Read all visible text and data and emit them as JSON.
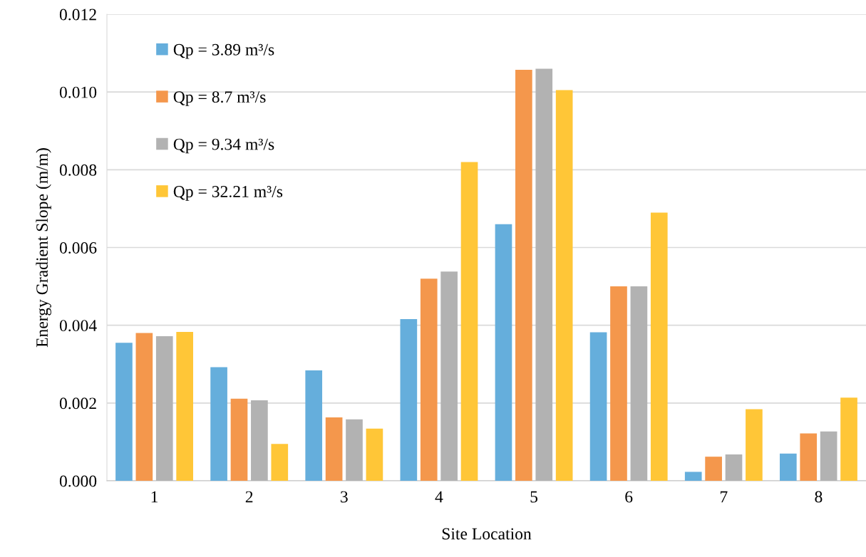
{
  "chart_data": {
    "type": "bar",
    "xlabel": "Site Location",
    "ylabel": "Energy Gradient Slope (m/m)",
    "categories": [
      "1",
      "2",
      "3",
      "4",
      "5",
      "6",
      "7",
      "8"
    ],
    "series": [
      {
        "name": "Qp = 3.89 m³/s",
        "color": "#65aedc",
        "values": [
          0.00355,
          0.00292,
          0.00284,
          0.00416,
          0.0066,
          0.00382,
          0.00023,
          0.0007
        ]
      },
      {
        "name": "Qp = 8.7 m³/s",
        "color": "#f4974c",
        "values": [
          0.0038,
          0.00211,
          0.00163,
          0.0052,
          0.01057,
          0.005,
          0.00062,
          0.00122
        ]
      },
      {
        "name": "Qp = 9.34 m³/s",
        "color": "#b2b2b2",
        "values": [
          0.00372,
          0.00207,
          0.00158,
          0.00538,
          0.0106,
          0.005,
          0.00068,
          0.00127
        ]
      },
      {
        "name": "Qp = 32.21 m³/s",
        "color": "#ffc637",
        "values": [
          0.00383,
          0.00095,
          0.00134,
          0.0082,
          0.01005,
          0.0069,
          0.00184,
          0.00214
        ]
      }
    ],
    "ylim": [
      0,
      0.012
    ],
    "yticks": [
      {
        "value": 0,
        "label": "0.000"
      },
      {
        "value": 0.002,
        "label": "0.002"
      },
      {
        "value": 0.004,
        "label": "0.004"
      },
      {
        "value": 0.006,
        "label": "0.006"
      },
      {
        "value": 0.008,
        "label": "0.008"
      },
      {
        "value": 0.01,
        "label": "0.010"
      },
      {
        "value": 0.012,
        "label": "0.012"
      }
    ],
    "grid": "y",
    "legend": "top left"
  }
}
